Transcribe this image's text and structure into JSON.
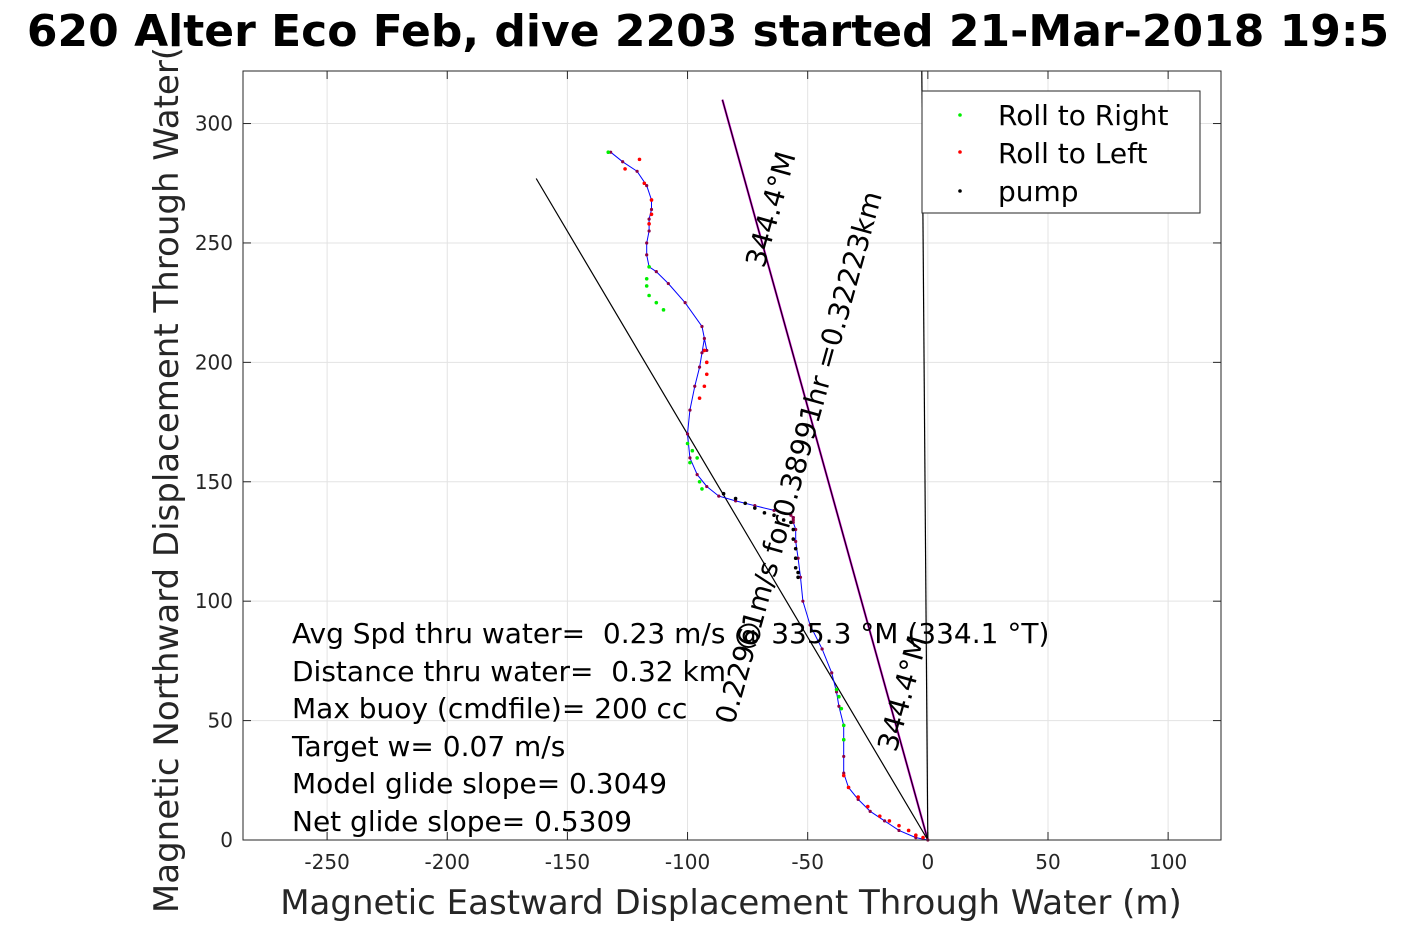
{
  "chart_data": {
    "type": "line",
    "title": "620 Alter Eco Feb, dive 2203 started 21-Mar-2018 19:5",
    "xlabel": "Magnetic Eastward Displacement Through Water (m)",
    "ylabel": "Magnetic Northward Displacement Through Water(",
    "xlim": [
      -285,
      122
    ],
    "ylim": [
      0,
      322
    ],
    "xticks": [
      -250,
      -200,
      -150,
      -100,
      -50,
      0,
      50,
      100
    ],
    "yticks": [
      0,
      50,
      100,
      150,
      200,
      250,
      300
    ],
    "grid": true,
    "legend": {
      "position": "top-right",
      "entries": [
        {
          "label": "Roll to Right",
          "color": "#00ee00"
        },
        {
          "label": "Roll to Left",
          "color": "#ff0000"
        },
        {
          "label": "pump",
          "color": "#000000"
        }
      ]
    },
    "series": [
      {
        "role": "track",
        "color": "#0000ff",
        "x": [
          0,
          -5,
          -12,
          -18,
          -24,
          -29,
          -33,
          -35,
          -35,
          -35,
          -35,
          -37,
          -38,
          -40,
          -44,
          -49,
          -52,
          -53,
          -54,
          -55,
          -55,
          -56,
          -56,
          -56,
          -56,
          -57,
          -64,
          -72,
          -80,
          -87,
          -92,
          -96,
          -99,
          -100,
          -99,
          -97,
          -95,
          -94,
          -93,
          -92,
          -94,
          -101,
          -108,
          -113,
          -116,
          -117,
          -117,
          -116,
          -116,
          -115,
          -115,
          -117,
          -121,
          -127,
          -132
        ],
        "y": [
          0,
          1,
          4,
          8,
          12,
          17,
          22,
          28,
          35,
          42,
          48,
          56,
          62,
          70,
          80,
          90,
          100,
          110,
          118,
          125,
          130,
          133,
          134,
          135,
          135,
          136,
          138,
          140,
          142,
          144,
          148,
          153,
          160,
          170,
          180,
          190,
          198,
          204,
          210,
          205,
          215,
          225,
          233,
          238,
          240,
          245,
          250,
          255,
          260,
          264,
          268,
          274,
          280,
          284,
          288
        ]
      },
      {
        "role": "heading-line",
        "color": "#000000",
        "x": [
          0,
          -85.5
        ],
        "y": [
          0,
          310
        ]
      },
      {
        "role": "current-line",
        "color": "#000000",
        "x": [
          0,
          -163
        ],
        "y": [
          0,
          277
        ]
      },
      {
        "role": "vertical-line",
        "color": "#000000",
        "x": [
          0,
          -2.5
        ],
        "y": [
          0,
          322
        ]
      }
    ],
    "markers": {
      "roll_right": {
        "x": [
          -35,
          -35,
          -36,
          -37,
          -38,
          -96,
          -98,
          -100,
          -99,
          -95,
          -94,
          -116,
          -117,
          -117,
          -116,
          -113,
          -110,
          -133
        ],
        "y": [
          42,
          48,
          55,
          60,
          63,
          160,
          163,
          166,
          158,
          150,
          147,
          240,
          235,
          232,
          228,
          225,
          222,
          288
        ]
      },
      "roll_left": {
        "x": [
          -2,
          -5,
          -8,
          -12,
          -16,
          -20,
          -25,
          -29,
          -33,
          -35,
          -93,
          -92,
          -92,
          -93,
          -95,
          -120,
          -118,
          -115,
          -115,
          -116,
          -126
        ],
        "y": [
          1,
          2,
          4,
          6,
          8,
          10,
          14,
          18,
          22,
          27,
          205,
          200,
          195,
          190,
          185,
          285,
          275,
          268,
          262,
          258,
          281
        ]
      },
      "pump": {
        "x": [
          -85,
          -80,
          -76,
          -72,
          -68,
          -64,
          -60,
          -57,
          -56,
          -56,
          -55,
          -55,
          -55,
          -54,
          -54
        ],
        "y": [
          145,
          143,
          141,
          139,
          137,
          136,
          134,
          133,
          130,
          126,
          122,
          118,
          114,
          112,
          110
        ]
      }
    },
    "annotations": {
      "stats": [
        "Avg Spd thru water=  0.23 m/s @ 335.3 °M (334.1 °T)",
        "Distance thru water=  0.32 km",
        "Max buoy (cmdfile)= 200 cc",
        "Target w= 0.07 m/s",
        "Model glide slope= 0.3049",
        "Net glide slope= 0.5309"
      ],
      "heading_label": "0.22961m/s for0.38991hr =0.32223km",
      "heading_deg_upper": "344.4°M",
      "heading_deg_lower": "344.4°M"
    }
  }
}
